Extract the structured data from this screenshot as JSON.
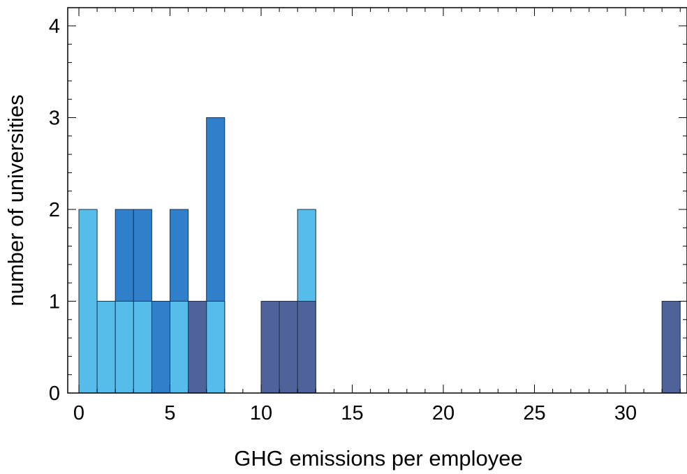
{
  "chart_data": {
    "type": "bar",
    "subtype": "stacked-histogram",
    "title": "",
    "xlabel": "GHG emissions per employee",
    "ylabel": "number of universities",
    "xlim": [
      -0.5,
      33.3
    ],
    "ylim": [
      0,
      4.1
    ],
    "xticks": [
      0,
      5,
      10,
      15,
      20,
      25,
      30
    ],
    "yticks": [
      0,
      1,
      2,
      3,
      4
    ],
    "bin_width": 1,
    "grid": false,
    "legend": "none",
    "colors": {
      "light": "#56bdeb",
      "mid": "#2f7fcb",
      "dark": "#4f6299",
      "edge": "#1f3350"
    },
    "series": [
      {
        "color_key": "light",
        "bins": [
          {
            "x0": 0,
            "value": 2
          },
          {
            "x0": 1,
            "value": 1
          },
          {
            "x0": 2,
            "value": 1
          },
          {
            "x0": 3,
            "value": 1
          },
          {
            "x0": 5,
            "value": 1
          },
          {
            "x0": 7,
            "value": 1
          },
          {
            "x0": 12,
            "value": 2
          }
        ]
      },
      {
        "color_key": "mid",
        "bins": [
          {
            "x0": 2,
            "value": 2
          },
          {
            "x0": 3,
            "value": 2
          },
          {
            "x0": 4,
            "value": 1
          },
          {
            "x0": 5,
            "value": 2
          },
          {
            "x0": 6,
            "value": 1
          },
          {
            "x0": 7,
            "value": 3
          },
          {
            "x0": 11,
            "value": 1
          }
        ]
      },
      {
        "color_key": "dark",
        "bins": [
          {
            "x0": 6,
            "value": 1
          },
          {
            "x0": 10,
            "value": 1
          },
          {
            "x0": 11,
            "value": 1
          },
          {
            "x0": 12,
            "value": 1
          },
          {
            "x0": 32,
            "value": 1
          }
        ]
      }
    ]
  }
}
